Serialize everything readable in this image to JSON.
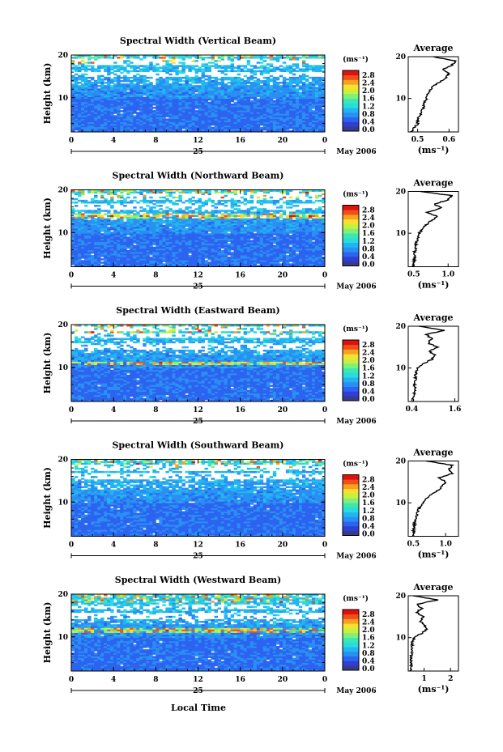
{
  "chart_data": [
    {
      "type": "heatmap",
      "title": "Spectral Width (Vertical Beam)",
      "ylabel": "Height (km)",
      "x_ticks": [
        "0",
        "4",
        "8",
        "12",
        "16",
        "20",
        "0"
      ],
      "y_ticks": [
        "10",
        "20"
      ],
      "xlim": [
        0,
        24
      ],
      "ylim": [
        2,
        20
      ],
      "date_day": "25",
      "date_label": "May 2006",
      "colorbar": {
        "unit": "(ms⁻¹)",
        "labels": [
          "0.0",
          "0.4",
          "0.8",
          "1.2",
          "1.6",
          "2.0",
          "2.4",
          "2.8"
        ]
      },
      "features": {
        "gap_altitudes": [
          15.5,
          18.5
        ],
        "strong_layer_altitude": null
      },
      "average_profile": {
        "type": "line",
        "title": "Average",
        "xlabel": "(ms⁻¹)",
        "x_ticks": [
          "0.5",
          "0.6"
        ],
        "x_tick_values": [
          0.5,
          0.6
        ],
        "xlim": [
          0.47,
          0.63
        ],
        "y_ticks": [
          "10",
          "20"
        ],
        "ylim": [
          2,
          20
        ],
        "height_km": [
          2,
          3,
          4,
          5,
          6,
          7,
          8,
          9,
          10,
          11,
          12,
          13,
          14,
          15,
          16,
          17,
          18,
          19,
          20
        ],
        "width_ms": [
          0.48,
          0.49,
          0.5,
          0.5,
          0.51,
          0.51,
          0.52,
          0.52,
          0.53,
          0.53,
          0.54,
          0.55,
          0.57,
          0.59,
          0.6,
          0.58,
          0.61,
          0.62,
          0.55
        ]
      }
    },
    {
      "type": "heatmap",
      "title": "Spectral Width (Northward Beam)",
      "ylabel": "Height (km)",
      "x_ticks": [
        "0",
        "4",
        "8",
        "12",
        "16",
        "20",
        "0"
      ],
      "y_ticks": [
        "10",
        "20"
      ],
      "xlim": [
        0,
        24
      ],
      "ylim": [
        2,
        20
      ],
      "date_day": "25",
      "date_label": "May 2006",
      "colorbar": {
        "unit": "(ms⁻¹)",
        "labels": [
          "0.0",
          "0.4",
          "0.8",
          "1.2",
          "1.6",
          "2.0",
          "2.4",
          "2.8"
        ]
      },
      "features": {
        "gap_altitudes": [
          16,
          18.5
        ],
        "strong_layer_altitude": 14
      },
      "average_profile": {
        "type": "line",
        "title": "Average",
        "xlabel": "(ms⁻¹)",
        "x_ticks": [
          "0.5",
          "1.0"
        ],
        "x_tick_values": [
          0.5,
          1.0
        ],
        "xlim": [
          0.42,
          1.15
        ],
        "y_ticks": [
          "10",
          "20"
        ],
        "ylim": [
          2,
          20
        ],
        "height_km": [
          2,
          3,
          4,
          5,
          6,
          7,
          8,
          9,
          10,
          11,
          12,
          13,
          14,
          15,
          16,
          17,
          18,
          19,
          20
        ],
        "width_ms": [
          0.5,
          0.5,
          0.51,
          0.51,
          0.52,
          0.53,
          0.54,
          0.56,
          0.58,
          0.62,
          0.68,
          0.75,
          0.85,
          0.7,
          0.9,
          0.8,
          1.0,
          1.05,
          0.6
        ]
      }
    },
    {
      "type": "heatmap",
      "title": "Spectral Width (Eastward Beam)",
      "ylabel": "Height (km)",
      "x_ticks": [
        "0",
        "4",
        "8",
        "12",
        "16",
        "20",
        "0"
      ],
      "y_ticks": [
        "10",
        "20"
      ],
      "xlim": [
        0,
        24
      ],
      "ylim": [
        2,
        20
      ],
      "date_day": "25",
      "date_label": "May 2006",
      "colorbar": {
        "unit": "(ms⁻¹)",
        "labels": [
          "0.0",
          "0.4",
          "0.8",
          "1.2",
          "1.6",
          "2.0",
          "2.4",
          "2.8"
        ]
      },
      "features": {
        "gap_altitudes": [
          15,
          17.5,
          19
        ],
        "strong_layer_altitude": 11
      },
      "average_profile": {
        "type": "line",
        "title": "Average",
        "xlabel": "",
        "x_ticks": [
          "0.4",
          "1.6"
        ],
        "x_tick_values": [
          0.4,
          1.6
        ],
        "xlim": [
          0.3,
          1.7
        ],
        "y_ticks": [
          "10",
          "20"
        ],
        "ylim": [
          2,
          20
        ],
        "height_km": [
          2,
          3,
          4,
          5,
          6,
          7,
          8,
          9,
          10,
          11,
          12,
          13,
          14,
          15,
          16,
          17,
          18,
          19,
          20
        ],
        "width_ms": [
          0.45,
          0.46,
          0.47,
          0.48,
          0.48,
          0.49,
          0.5,
          0.52,
          0.55,
          0.7,
          0.95,
          1.05,
          0.9,
          1.1,
          0.85,
          0.95,
          0.8,
          1.3,
          0.6
        ]
      }
    },
    {
      "type": "heatmap",
      "title": "Spectral Width (Southward Beam)",
      "ylabel": "Height (km)",
      "x_ticks": [
        "0",
        "4",
        "8",
        "12",
        "16",
        "20",
        "0"
      ],
      "y_ticks": [
        "10",
        "20"
      ],
      "xlim": [
        0,
        24
      ],
      "ylim": [
        2,
        20
      ],
      "date_day": "25",
      "date_label": "May 2006",
      "colorbar": {
        "unit": "(ms⁻¹)",
        "labels": [
          "0.0",
          "0.4",
          "0.8",
          "1.2",
          "1.6",
          "2.0",
          "2.4",
          "2.8"
        ]
      },
      "features": {
        "gap_altitudes": [
          16,
          18
        ],
        "strong_layer_altitude": null
      },
      "average_profile": {
        "type": "line",
        "title": "Average",
        "xlabel": "(ms⁻¹)",
        "x_ticks": [
          "0.5",
          "1.0"
        ],
        "x_tick_values": [
          0.5,
          1.0
        ],
        "xlim": [
          0.42,
          1.2
        ],
        "y_ticks": [
          "10",
          "20"
        ],
        "ylim": [
          2,
          20
        ],
        "height_km": [
          2,
          3,
          4,
          5,
          6,
          7,
          8,
          9,
          10,
          11,
          12,
          13,
          14,
          15,
          16,
          17,
          18,
          19,
          20
        ],
        "width_ms": [
          0.5,
          0.5,
          0.51,
          0.52,
          0.53,
          0.55,
          0.57,
          0.6,
          0.64,
          0.7,
          0.78,
          0.88,
          0.95,
          1.0,
          0.9,
          1.1,
          1.05,
          1.1,
          0.7
        ]
      }
    },
    {
      "type": "heatmap",
      "title": "Spectral Width (Westward Beam)",
      "ylabel": "Height (km)",
      "x_ticks": [
        "0",
        "4",
        "8",
        "12",
        "16",
        "20",
        "0"
      ],
      "y_ticks": [
        "10",
        "20"
      ],
      "xlim": [
        0,
        24
      ],
      "ylim": [
        2,
        20
      ],
      "date_day": "25",
      "date_label": "May 2006",
      "colorbar": {
        "unit": "(ms⁻¹)",
        "labels": [
          "0.0",
          "0.4",
          "0.8",
          "1.2",
          "1.6",
          "2.0",
          "2.4",
          "2.8"
        ]
      },
      "features": {
        "gap_altitudes": [
          15,
          17
        ],
        "strong_layer_altitude": 11.5
      },
      "average_profile": {
        "type": "line",
        "title": "Average",
        "xlabel": "(ms⁻¹)",
        "x_ticks": [
          "1",
          "2"
        ],
        "x_tick_values": [
          1,
          2
        ],
        "xlim": [
          0.4,
          2.3
        ],
        "y_ticks": [
          "10",
          "20"
        ],
        "ylim": [
          2,
          20
        ],
        "height_km": [
          2,
          3,
          4,
          5,
          6,
          7,
          8,
          9,
          10,
          11,
          12,
          13,
          14,
          15,
          16,
          17,
          18,
          19,
          20
        ],
        "width_ms": [
          0.5,
          0.5,
          0.51,
          0.52,
          0.52,
          0.53,
          0.54,
          0.56,
          0.62,
          0.9,
          1.1,
          1.0,
          0.85,
          1.0,
          0.7,
          0.9,
          0.75,
          1.5,
          0.6
        ]
      }
    }
  ],
  "shared_xlabel": "Local Time"
}
